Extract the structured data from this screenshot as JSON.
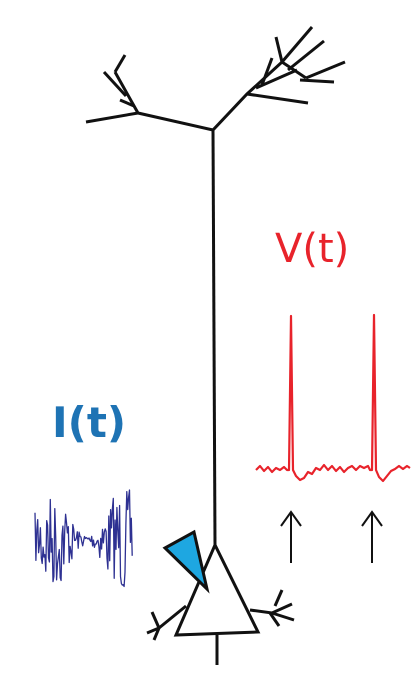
{
  "labels": {
    "voltage": "V(t)",
    "current": "I(t)"
  },
  "colors": {
    "neuron": "#111111",
    "voltage_trace": "#e8232b",
    "current_label": "#1e73b4",
    "current_trace": "#2e3192",
    "electrode": "#1ea7e1",
    "arrows": "#111111"
  },
  "icons": {
    "spike_markers": "up-arrow-icon",
    "electrode": "pipette-electrode"
  }
}
